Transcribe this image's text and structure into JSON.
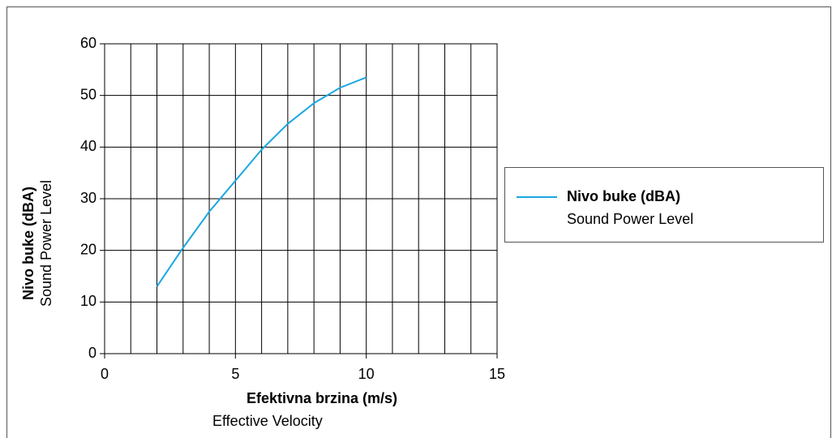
{
  "chart_data": {
    "type": "line",
    "xlabel": "Efektivna brzina (m/s)",
    "xlabel_sub": "Effective Velocity",
    "ylabel": "Nivo buke (dBA)",
    "ylabel_sub": "Sound Power Level",
    "x": [
      2,
      3,
      4,
      5,
      6,
      7,
      8,
      9,
      10
    ],
    "series": [
      {
        "name": "Nivo buke (dBA)",
        "subtitle": "Sound Power Level",
        "color": "#1aa7e0",
        "values": [
          13,
          20.5,
          27.5,
          33.5,
          39.5,
          44.5,
          48.5,
          51.5,
          53.5
        ]
      }
    ],
    "xlim": [
      0,
      15
    ],
    "ylim": [
      0,
      60
    ],
    "xticks": [
      0,
      5,
      10,
      15
    ],
    "yticks": [
      0,
      10,
      20,
      30,
      40,
      50,
      60
    ],
    "xgrid": [
      0,
      1,
      2,
      3,
      4,
      5,
      6,
      7,
      8,
      9,
      10,
      11,
      12,
      13,
      14,
      15
    ],
    "grid": true,
    "legend": "right"
  }
}
